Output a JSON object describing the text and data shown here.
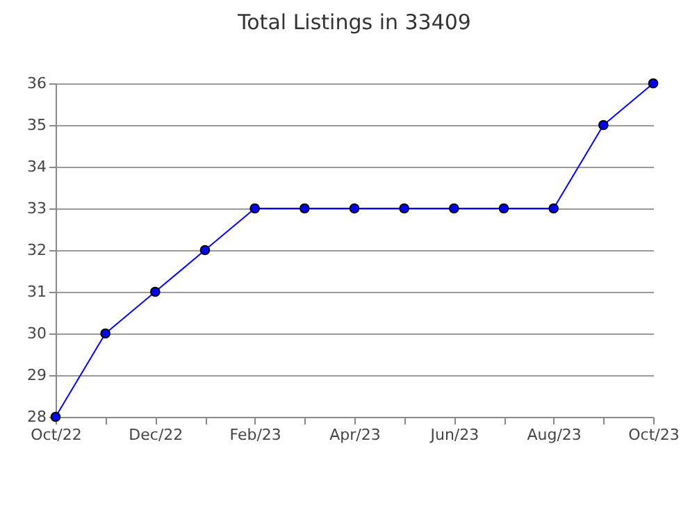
{
  "chart_data": {
    "type": "line",
    "title": "Total Listings in 33409",
    "categories": [
      "Oct/22",
      null,
      "Dec/22",
      null,
      "Feb/23",
      null,
      "Apr/23",
      null,
      "Jun/23",
      null,
      "Aug/23",
      null,
      "Oct/23"
    ],
    "series": [
      {
        "color": "#0000ff",
        "values": [
          28,
          30,
          31,
          32,
          33,
          33,
          33,
          33,
          33,
          33,
          33,
          35,
          36
        ]
      }
    ],
    "ylim": [
      28,
      36
    ],
    "yticks": [
      28,
      29,
      30,
      31,
      32,
      33,
      34,
      35,
      36
    ],
    "grid": "y",
    "marker": "circle",
    "line_style": "solid"
  }
}
